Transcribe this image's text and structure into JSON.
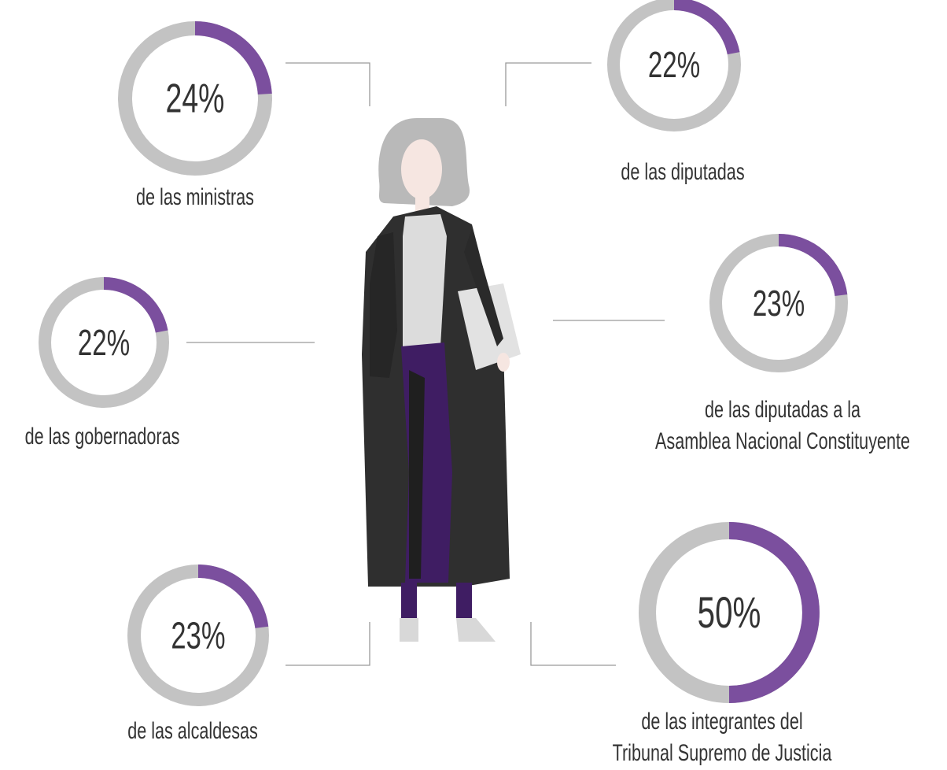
{
  "chart_data": [
    {
      "type": "donut",
      "values": [
        24
      ],
      "value_labels": [
        "24%"
      ],
      "color": "#7b4f9e",
      "title": [
        "de las ministras"
      ]
    },
    {
      "type": "donut",
      "values": [
        22
      ],
      "value_labels": [
        "22%"
      ],
      "color": "#7b4f9e",
      "title": [
        "de las diputadas"
      ]
    },
    {
      "type": "donut",
      "values": [
        22
      ],
      "value_labels": [
        "22%"
      ],
      "color": "#7b4f9e",
      "title": [
        "de las gobernadoras"
      ]
    },
    {
      "type": "donut",
      "values": [
        23
      ],
      "value_labels": [
        "23%"
      ],
      "color": "#7b4f9e",
      "title": [
        "de las diputadas a la",
        "Asamblea Nacional Constituyente"
      ]
    },
    {
      "type": "donut",
      "values": [
        23
      ],
      "value_labels": [
        "23%"
      ],
      "color": "#7b4f9e",
      "title": [
        "de las alcaldesas"
      ]
    },
    {
      "type": "donut",
      "values": [
        50
      ],
      "value_labels": [
        "50%"
      ],
      "color": "#7b4f9e",
      "title": [
        "de las integrantes del",
        "Tribunal Supremo de Justicia"
      ]
    }
  ]
}
